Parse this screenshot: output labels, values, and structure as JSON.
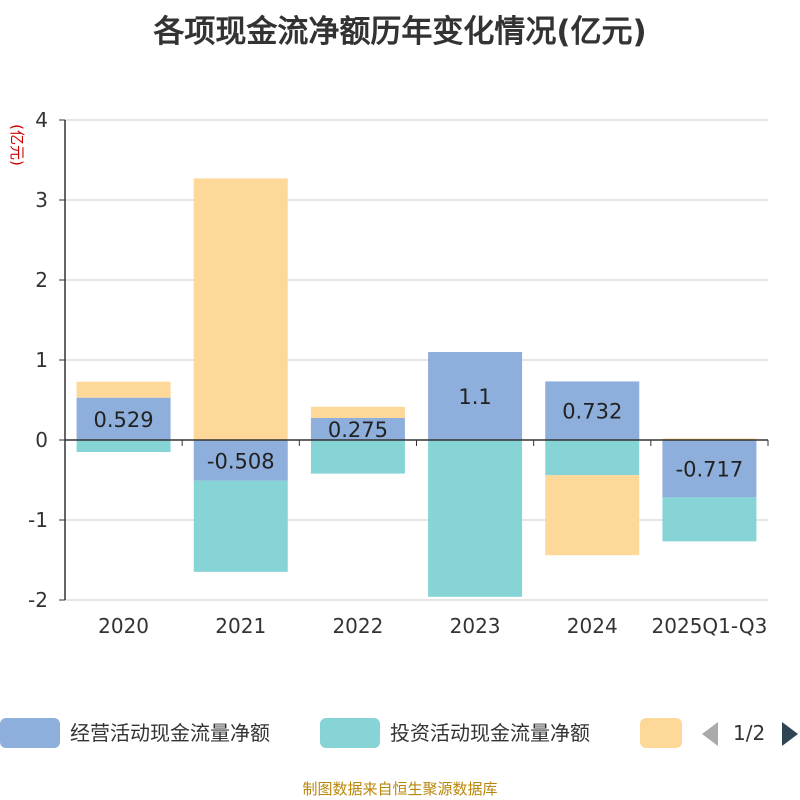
{
  "title": "各项现金流净额历年变化情况(亿元)",
  "source": "制图数据来自恒生聚源数据库",
  "colors": {
    "operating": "#8eaedb",
    "investing": "#87d4d7",
    "financing": "#fdd899",
    "axis": "#333333",
    "grid": "#cccccc",
    "ylabel": "#cc0000",
    "pager_active": "#2f4554",
    "pager_inactive": "#aaaaaa"
  },
  "legend": {
    "items": [
      {
        "label": "经营活动现金流量净额",
        "color": "#8eaedb"
      },
      {
        "label": "投资活动现金流量净额",
        "color": "#87d4d7"
      },
      {
        "label": "",
        "color": "#fdd899"
      }
    ],
    "page": "1/2",
    "prev_icon": "triangle-left",
    "next_icon": "triangle-right"
  },
  "chart_data": {
    "type": "bar",
    "stacked": true,
    "title": "各项现金流净额历年变化情况(亿元)",
    "ylabel": "(亿元)",
    "xlabel": "",
    "ylim": [
      -2,
      4
    ],
    "yticks": [
      -2,
      -1,
      0,
      1,
      2,
      3,
      4
    ],
    "grid": true,
    "legend_position": "bottom",
    "categories": [
      "2020",
      "2021",
      "2022",
      "2023",
      "2024",
      "2025Q1-Q3"
    ],
    "series": [
      {
        "name": "经营活动现金流量净额",
        "values": [
          0.529,
          -0.508,
          0.275,
          1.1,
          0.732,
          -0.717
        ],
        "labeled": true
      },
      {
        "name": "投资活动现金流量净额",
        "values": [
          -0.15,
          -1.14,
          -0.42,
          -1.96,
          -0.44,
          -0.55
        ]
      },
      {
        "name": "",
        "values": [
          0.2,
          3.27,
          0.14,
          0.0,
          -1.0,
          0.02
        ]
      }
    ],
    "data_labels": [
      "0.529",
      "-0.508",
      "0.275",
      "1.1",
      "0.732",
      "-0.717"
    ]
  }
}
